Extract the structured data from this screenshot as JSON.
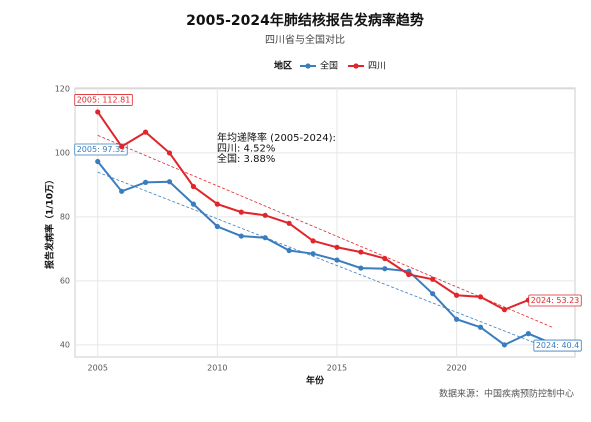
{
  "chart_data": {
    "type": "line",
    "title": "2005-2024年肺结核报告发病率趋势",
    "subtitle": "四川省与全国对比",
    "legend_title": "地区",
    "x_label": "年份",
    "y_label": "报告发病率（1/10万）",
    "caption": "数据来源：中国疾病预防控制中心",
    "x": [
      2005,
      2006,
      2007,
      2008,
      2009,
      2010,
      2011,
      2012,
      2013,
      2014,
      2015,
      2016,
      2017,
      2018,
      2019,
      2020,
      2021,
      2022,
      2023,
      2024
    ],
    "xlim": [
      2004.05,
      2024.95
    ],
    "xticks": [
      2005,
      2010,
      2015,
      2020
    ],
    "ylim": [
      36.2,
      120.3
    ],
    "yticks": [
      40,
      60,
      80,
      100,
      120
    ],
    "grid": true,
    "series": [
      {
        "name": "全国",
        "color": "#3a7dbf",
        "values": [
          97.32,
          88,
          90.8,
          91,
          84,
          77,
          74,
          73.5,
          69.5,
          68.5,
          66.5,
          64,
          63.8,
          63,
          56,
          48,
          45.5,
          40,
          43.5,
          40.4
        ],
        "trend": [
          94,
          38.5
        ],
        "end_labels": [
          "2005: 97.32",
          "2024: 40.4"
        ]
      },
      {
        "name": "四川",
        "color": "#e0262b",
        "values": [
          112.81,
          102,
          106.5,
          100,
          89.5,
          84,
          81.5,
          80.5,
          78,
          72.5,
          70.5,
          69,
          67,
          62,
          60.5,
          55.5,
          55,
          51,
          54,
          53.23
        ],
        "trend": [
          105.5,
          45.5
        ],
        "end_labels": [
          "2005: 112.81",
          "2024: 53.23"
        ]
      }
    ],
    "annotation": [
      "年均递降率 (2005-2024):",
      "四川: 4.52%",
      "全国: 3.88%"
    ]
  }
}
